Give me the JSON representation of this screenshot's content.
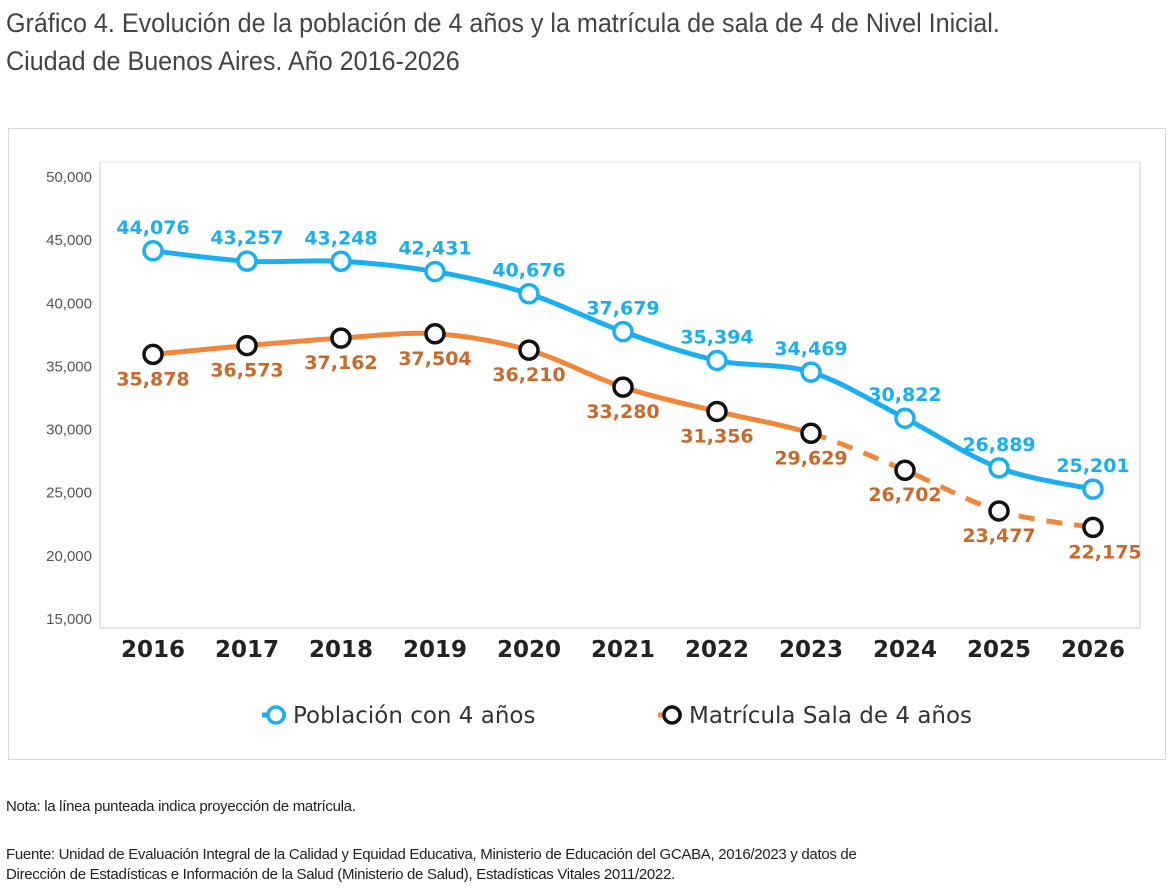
{
  "title_line1": "Gráfico 4. Evolución de la población de 4 años y la matrícula de sala de 4 de Nivel Inicial.",
  "title_line2": "Ciudad de Buenos Aires. Año 2016-2026",
  "note_label": "Nota:",
  "note_text": " la línea punteada indica proyección de matrícula.",
  "source_label": "Fuente:",
  "source_line1": " Unidad de Evaluación Integral de la Calidad y Equidad Educativa, Ministerio de Educación del GCABA, 2016/2023 y datos de",
  "source_line2": "Dirección de Estadísticas e Información de la Salud (Ministerio de Salud), Estadísticas Vitales 2011/2022.",
  "chart_data": {
    "type": "line",
    "categories": [
      "2016",
      "2017",
      "2018",
      "2019",
      "2020",
      "2021",
      "2022",
      "2023",
      "2024",
      "2025",
      "2026"
    ],
    "ylim": [
      15000,
      50000
    ],
    "yticks": [
      15000,
      20000,
      25000,
      30000,
      35000,
      40000,
      45000,
      50000
    ],
    "ytick_labels": [
      "15,000",
      "20,000",
      "25,000",
      "30,000",
      "35,000",
      "40,000",
      "45,000",
      "50,000"
    ],
    "grid": false,
    "legend_placement": "bottom",
    "series": [
      {
        "name": "Población con 4 años",
        "color": "#1ab0ef",
        "marker_color": "#1ab0ef",
        "label_color": "#1ab0ef",
        "values": [
          44076,
          43257,
          43248,
          42431,
          40676,
          37679,
          35394,
          34469,
          30822,
          26889,
          25201
        ],
        "labels": [
          "44,076",
          "43,257",
          "43,248",
          "42,431",
          "40,676",
          "37,679",
          "35,394",
          "34,469",
          "30,822",
          "26,889",
          "25,201"
        ]
      },
      {
        "name": "Matrícula Sala de 4 años",
        "color": "#f0873a",
        "marker_color": "#111111",
        "label_color": "#c9692b",
        "values": [
          35878,
          36573,
          37162,
          37504,
          36210,
          33280,
          31356,
          29629,
          26702,
          23477,
          22175
        ],
        "labels": [
          "35,878",
          "36,573",
          "37,162",
          "37,504",
          "36,210",
          "33,280",
          "31,356",
          "29,629",
          "26,702",
          "23,477",
          "22,175"
        ],
        "projected_from": "2023"
      }
    ]
  }
}
